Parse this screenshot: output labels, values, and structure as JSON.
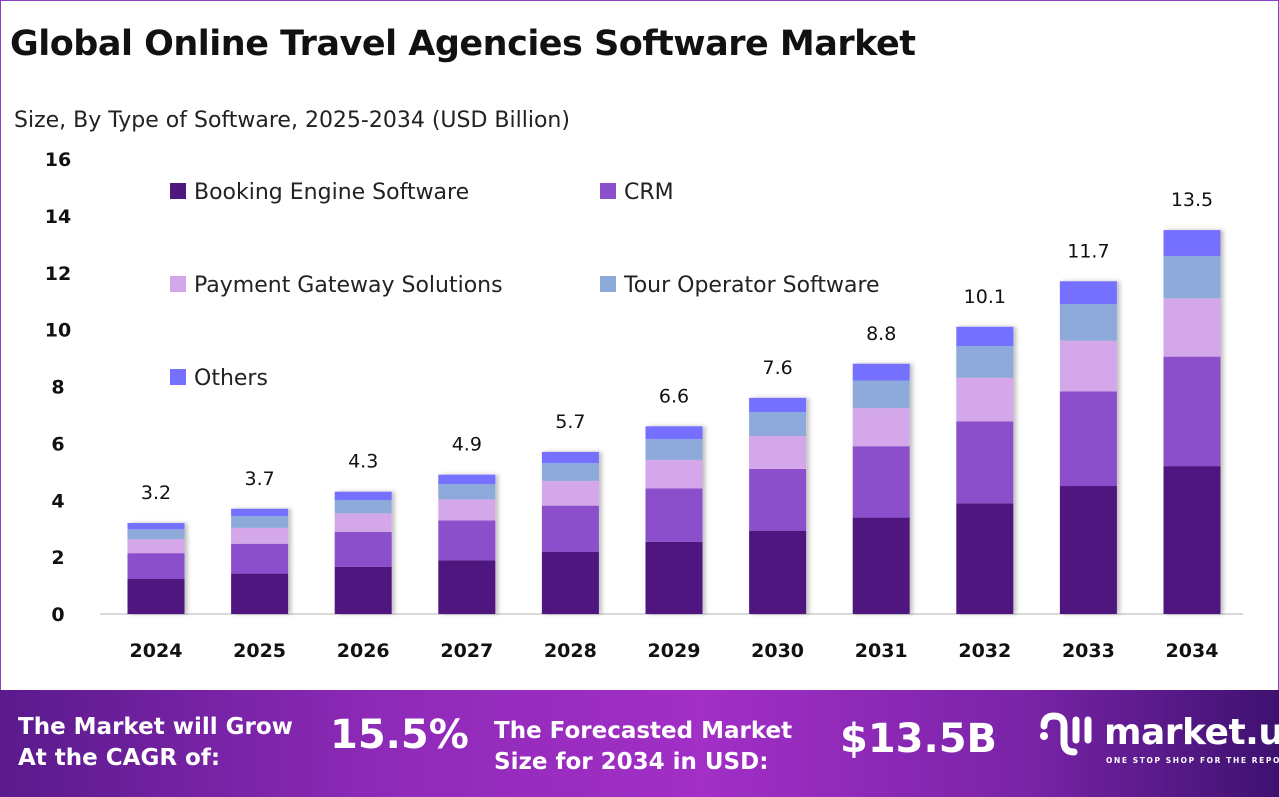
{
  "title": "Global Online Travel Agencies Software Market",
  "subtitle": "Size, By Type of Software, 2025-2034 (USD Billion)",
  "chart_data": {
    "type": "bar",
    "stacked": true,
    "categories": [
      "2024",
      "2025",
      "2026",
      "2027",
      "2028",
      "2029",
      "2030",
      "2031",
      "2032",
      "2033",
      "2034"
    ],
    "series": [
      {
        "name": "Booking Engine Software",
        "color": "#4f1780",
        "values": [
          1.23,
          1.42,
          1.66,
          1.89,
          2.19,
          2.54,
          2.93,
          3.39,
          3.89,
          4.5,
          5.2
        ]
      },
      {
        "name": "CRM",
        "color": "#8c50cc",
        "values": [
          0.91,
          1.05,
          1.23,
          1.4,
          1.62,
          1.88,
          2.17,
          2.51,
          2.88,
          3.33,
          3.85
        ]
      },
      {
        "name": "Payment Gateway Solutions",
        "color": "#d4a7ea",
        "values": [
          0.49,
          0.56,
          0.65,
          0.74,
          0.87,
          1.0,
          1.16,
          1.34,
          1.54,
          1.78,
          2.05
        ]
      },
      {
        "name": "Tour Operator Software",
        "color": "#8eaadb",
        "values": [
          0.35,
          0.41,
          0.47,
          0.54,
          0.63,
          0.73,
          0.84,
          0.97,
          1.11,
          1.29,
          1.49
        ]
      },
      {
        "name": "Others",
        "color": "#7570ff",
        "values": [
          0.22,
          0.26,
          0.29,
          0.33,
          0.39,
          0.45,
          0.5,
          0.59,
          0.68,
          0.8,
          0.91
        ]
      }
    ],
    "totals": [
      "3.2",
      "3.7",
      "4.3",
      "4.9",
      "5.7",
      "6.6",
      "7.6",
      "8.8",
      "10.1",
      "11.7",
      "13.5"
    ],
    "yticks": [
      "0",
      "2",
      "4",
      "6",
      "8",
      "10",
      "12",
      "14",
      "16"
    ],
    "ylim": [
      0,
      16
    ],
    "grid": false,
    "legend": "top-left"
  },
  "footer": {
    "cagr_label": "The Market will Grow At the CAGR of:",
    "cagr_line1": "The Market will Grow",
    "cagr_line2": "At the CAGR of:",
    "cagr_value": "15.5%",
    "forecast_line1": "The Forecasted Market",
    "forecast_line2": "Size for 2034 in USD:",
    "forecast_value": "$13.5B",
    "logo_text": "market.us",
    "logo_tagline": "ONE STOP SHOP FOR THE REPORTS"
  }
}
